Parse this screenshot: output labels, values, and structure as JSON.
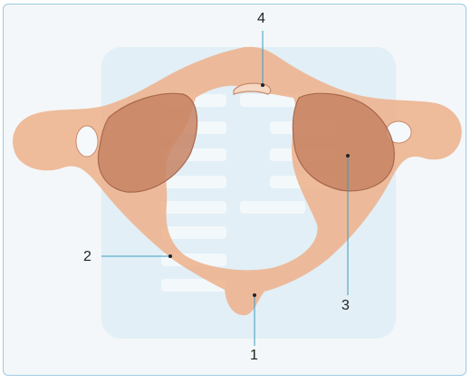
{
  "diagram": {
    "labels": [
      {
        "id": "1",
        "text": "1"
      },
      {
        "id": "2",
        "text": "2"
      },
      {
        "id": "3",
        "text": "3"
      },
      {
        "id": "4",
        "text": "4"
      }
    ],
    "colors": {
      "bone": "#edb693",
      "bone_shade": "#d99a76",
      "facet": "#c78464",
      "facet_edge": "#a8674b",
      "watermark": "#dcebf4",
      "leader_line": "#3b9cbf",
      "frame": "#9dcbe0"
    }
  }
}
